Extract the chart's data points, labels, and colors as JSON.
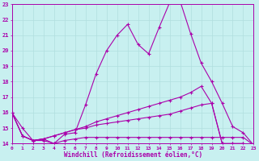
{
  "xlabel": "Windchill (Refroidissement éolien,°C)",
  "bg_color": "#c8f0f0",
  "line_color": "#aa00aa",
  "grid_color": "#b0dede",
  "xmin": 0,
  "xmax": 23,
  "ymin": 14,
  "ymax": 23,
  "lines": [
    {
      "x": [
        0,
        1,
        2,
        3,
        4,
        5,
        6,
        7,
        8,
        9,
        10,
        11,
        12,
        13,
        14,
        15,
        16,
        17,
        18,
        19,
        20,
        21,
        22,
        23
      ],
      "y": [
        16.0,
        15.0,
        14.2,
        14.2,
        14.0,
        14.6,
        14.7,
        16.5,
        18.5,
        20.0,
        21.0,
        21.7,
        20.4,
        19.8,
        21.5,
        23.1,
        23.2,
        21.1,
        19.2,
        18.0,
        16.6,
        15.1,
        14.7,
        13.9
      ]
    },
    {
      "x": [
        0,
        1,
        2,
        3,
        4,
        5,
        6,
        7,
        8,
        9,
        10,
        11,
        12,
        13,
        14,
        15,
        16,
        17,
        18,
        19,
        20,
        21,
        22,
        23
      ],
      "y": [
        16.0,
        14.5,
        14.2,
        14.3,
        14.5,
        14.7,
        14.9,
        15.1,
        15.4,
        15.6,
        15.8,
        16.0,
        16.2,
        16.4,
        16.6,
        16.8,
        17.0,
        17.3,
        17.7,
        16.6,
        14.0,
        14.0,
        14.0,
        13.9
      ]
    },
    {
      "x": [
        0,
        1,
        2,
        3,
        4,
        5,
        6,
        7,
        8,
        9,
        10,
        11,
        12,
        13,
        14,
        15,
        16,
        17,
        18,
        19,
        20,
        21,
        22,
        23
      ],
      "y": [
        16.0,
        14.5,
        14.2,
        14.3,
        14.5,
        14.7,
        14.9,
        15.0,
        15.2,
        15.3,
        15.4,
        15.5,
        15.6,
        15.7,
        15.8,
        15.9,
        16.1,
        16.3,
        16.5,
        16.6,
        14.0,
        14.0,
        14.0,
        13.9
      ]
    },
    {
      "x": [
        0,
        1,
        2,
        3,
        4,
        5,
        6,
        7,
        8,
        9,
        10,
        11,
        12,
        13,
        14,
        15,
        16,
        17,
        18,
        19,
        20,
        21,
        22,
        23
      ],
      "y": [
        16.0,
        14.5,
        14.2,
        14.3,
        14.0,
        14.2,
        14.3,
        14.4,
        14.4,
        14.4,
        14.4,
        14.4,
        14.4,
        14.4,
        14.4,
        14.4,
        14.4,
        14.4,
        14.4,
        14.4,
        14.4,
        14.4,
        14.4,
        13.9
      ]
    }
  ]
}
